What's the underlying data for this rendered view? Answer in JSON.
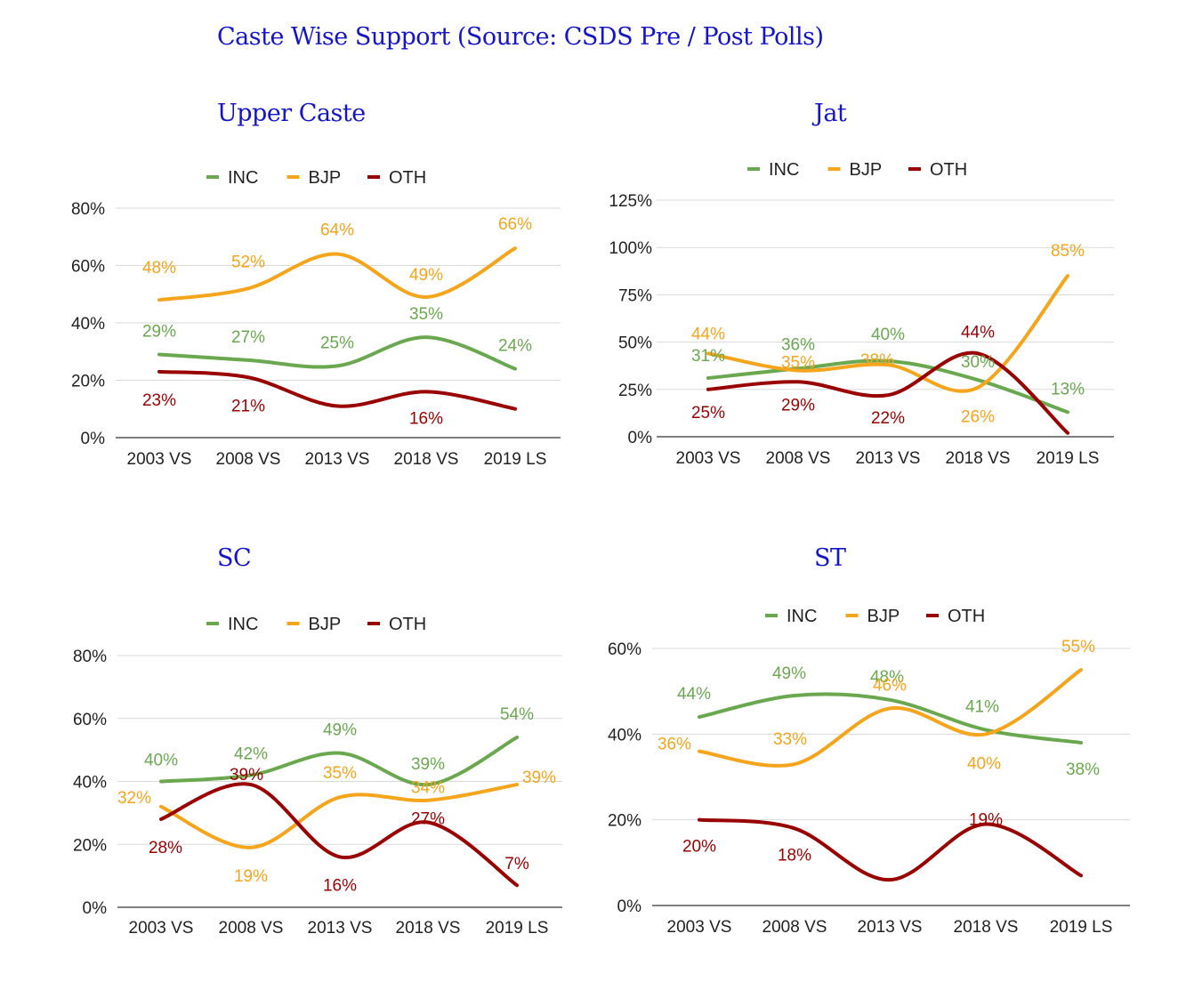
{
  "title": "Caste Wise Support (Source: CSDS Pre / Post Polls)",
  "colors": {
    "INC": "#6aa84f",
    "BJP": "#f4a51c",
    "OTH": "#990000",
    "title": "#1515c8"
  },
  "chart_data": [
    {
      "id": "upper-caste",
      "type": "line",
      "title": "Upper Caste",
      "categories": [
        "2003 VS",
        "2008 VS",
        "2013 VS",
        "2018 VS",
        "2019 LS"
      ],
      "ylim": [
        0,
        80
      ],
      "yticks": [
        "0%",
        "20%",
        "40%",
        "60%",
        "80%"
      ],
      "ytick_values": [
        0,
        20,
        40,
        60,
        80
      ],
      "legend": "top",
      "grid": true,
      "series": [
        {
          "name": "INC",
          "values": [
            29,
            27,
            25,
            35,
            24
          ],
          "labels": [
            "29%",
            "27%",
            "25%",
            "35%",
            "24%"
          ]
        },
        {
          "name": "BJP",
          "values": [
            48,
            52,
            64,
            49,
            66
          ],
          "labels": [
            "48%",
            "52%",
            "64%",
            "49%",
            "66%"
          ]
        },
        {
          "name": "OTH",
          "values": [
            23,
            21,
            11,
            16,
            10
          ],
          "labels": [
            "23%",
            "21%",
            "",
            "16%",
            ""
          ]
        }
      ]
    },
    {
      "id": "jat",
      "type": "line",
      "title": "Jat",
      "categories": [
        "2003 VS",
        "2008 VS",
        "2013 VS",
        "2018 VS",
        "2019 LS"
      ],
      "ylim": [
        0,
        125
      ],
      "yticks": [
        "0%",
        "25%",
        "50%",
        "75%",
        "100%",
        "125%"
      ],
      "ytick_values": [
        0,
        25,
        50,
        75,
        100,
        125
      ],
      "legend": "top",
      "grid": true,
      "series": [
        {
          "name": "INC",
          "values": [
            31,
            36,
            40,
            30,
            13
          ],
          "labels": [
            "31%",
            "36%",
            "40%",
            "30%",
            "13%"
          ]
        },
        {
          "name": "BJP",
          "values": [
            44,
            35,
            38,
            26,
            85
          ],
          "labels": [
            "44%",
            "35%",
            "38%",
            "26%",
            "85%"
          ]
        },
        {
          "name": "OTH",
          "values": [
            25,
            29,
            22,
            44,
            2
          ],
          "labels": [
            "25%",
            "29%",
            "22%",
            "44%",
            ""
          ]
        }
      ]
    },
    {
      "id": "sc",
      "type": "line",
      "title": "SC",
      "categories": [
        "2003 VS",
        "2008 VS",
        "2013 VS",
        "2018 VS",
        "2019 LS"
      ],
      "ylim": [
        0,
        80
      ],
      "yticks": [
        "0%",
        "20%",
        "40%",
        "60%",
        "80%"
      ],
      "ytick_values": [
        0,
        20,
        40,
        60,
        80
      ],
      "legend": "top",
      "grid": true,
      "series": [
        {
          "name": "INC",
          "values": [
            40,
            42,
            49,
            39,
            54
          ],
          "labels": [
            "40%",
            "42%",
            "49%",
            "39%",
            "54%"
          ]
        },
        {
          "name": "BJP",
          "values": [
            32,
            19,
            35,
            34,
            39
          ],
          "labels": [
            "32%",
            "19%",
            "35%",
            "34%",
            "39%"
          ]
        },
        {
          "name": "OTH",
          "values": [
            28,
            39,
            16,
            27,
            7
          ],
          "labels": [
            "28%",
            "39%",
            "16%",
            "27%",
            "7%"
          ]
        }
      ]
    },
    {
      "id": "st",
      "type": "line",
      "title": "ST",
      "categories": [
        "2003 VS",
        "2008 VS",
        "2013 VS",
        "2018 VS",
        "2019 LS"
      ],
      "ylim": [
        0,
        60
      ],
      "yticks": [
        "0%",
        "20%",
        "40%",
        "60%"
      ],
      "ytick_values": [
        0,
        20,
        40,
        60
      ],
      "legend": "top",
      "grid": true,
      "series": [
        {
          "name": "INC",
          "values": [
            44,
            49,
            48,
            41,
            38
          ],
          "labels": [
            "44%",
            "49%",
            "48%",
            "41%",
            "38%"
          ]
        },
        {
          "name": "BJP",
          "values": [
            36,
            33,
            46,
            40,
            55
          ],
          "labels": [
            "36%",
            "33%",
            "46%",
            "40%",
            "55%"
          ]
        },
        {
          "name": "OTH",
          "values": [
            20,
            18,
            6,
            19,
            7
          ],
          "labels": [
            "20%",
            "18%",
            "",
            "19%",
            ""
          ]
        }
      ]
    }
  ]
}
